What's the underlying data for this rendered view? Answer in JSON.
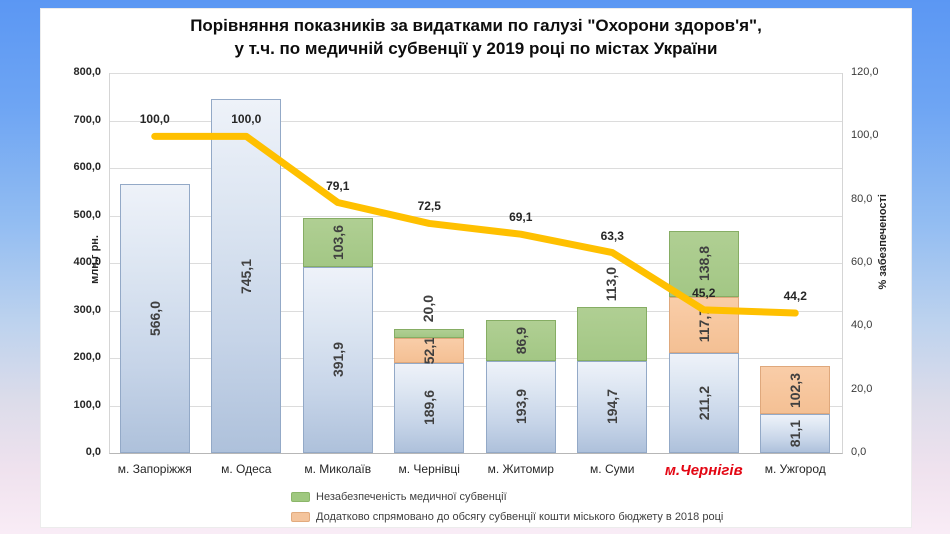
{
  "slide": {
    "title_line1": "Порівняння показників за видатками по галузі \"Охорони здоров'я\",",
    "title_line2": "у т.ч. по медичній субвенції у 2019 році по містах України"
  },
  "chart_data": {
    "type": "bar",
    "subtype": "stacked-bars-with-line",
    "title": "Порівняння показників за видатками по галузі \"Охорони здоров'я\", у т.ч. по медичній субвенції у 2019 році по містах України",
    "categories": [
      "м. Запоріжжя",
      "м. Одеса",
      "м. Миколаїв",
      "м. Чернівці",
      "м. Житомир",
      "м. Суми",
      "м.Чернігів",
      "м. Ужгород"
    ],
    "highlight_category_index": 6,
    "left_axis": {
      "label": "млн.г рн.",
      "min": 0,
      "max": 800,
      "step": 100
    },
    "right_axis": {
      "label": "% забезпеченості",
      "min": 0,
      "max": 120,
      "step": 20
    },
    "grid": "horizontal",
    "legend_position": "bottom",
    "series": [
      {
        "key": "base",
        "name": "",
        "type": "bar",
        "values": [
          566.0,
          745.1,
          391.9,
          189.6,
          193.9,
          194.7,
          211.2,
          81.1
        ],
        "label_placement": [
          "in",
          "in",
          "in",
          "in",
          "in",
          "in",
          "in",
          "in"
        ]
      },
      {
        "key": "additional_2018",
        "name": "Додатково спрямовано до обсягу субвенції  кошти міського бюджету в 2018 році",
        "type": "bar",
        "values": [
          null,
          null,
          null,
          52.1,
          null,
          null,
          117.7,
          102.3
        ],
        "label_placement": [
          null,
          null,
          null,
          "in",
          null,
          null,
          "in",
          "in"
        ]
      },
      {
        "key": "unsecured",
        "name": "Незабезпеченість медичної субвенції",
        "type": "bar",
        "values": [
          null,
          null,
          103.6,
          20.0,
          86.9,
          113.0,
          138.8,
          null
        ],
        "label_placement": [
          null,
          null,
          "in",
          "out",
          "in",
          "out",
          "in",
          null
        ]
      },
      {
        "key": "provision_pct",
        "name": "% забезпеченості",
        "type": "line",
        "axis": "right",
        "values": [
          100.0,
          100.0,
          79.1,
          72.5,
          69.1,
          63.3,
          45.2,
          44.2
        ]
      }
    ],
    "legend": [
      {
        "swatch": "green",
        "label": "Незабезпеченість медичної субвенції"
      },
      {
        "swatch": "orange",
        "label": "Додатково спрямовано до обсягу субвенції  кошти міського бюджету в 2018 році"
      }
    ]
  },
  "colors": {
    "line": "#ffc000",
    "bar_blue": "#c6d4e8",
    "bar_green": "#a3c785",
    "bar_orange": "#f4c094",
    "highlight_text": "#e30613",
    "bg_top": "#5b97f3",
    "bg_bottom": "#f9ecf6"
  }
}
